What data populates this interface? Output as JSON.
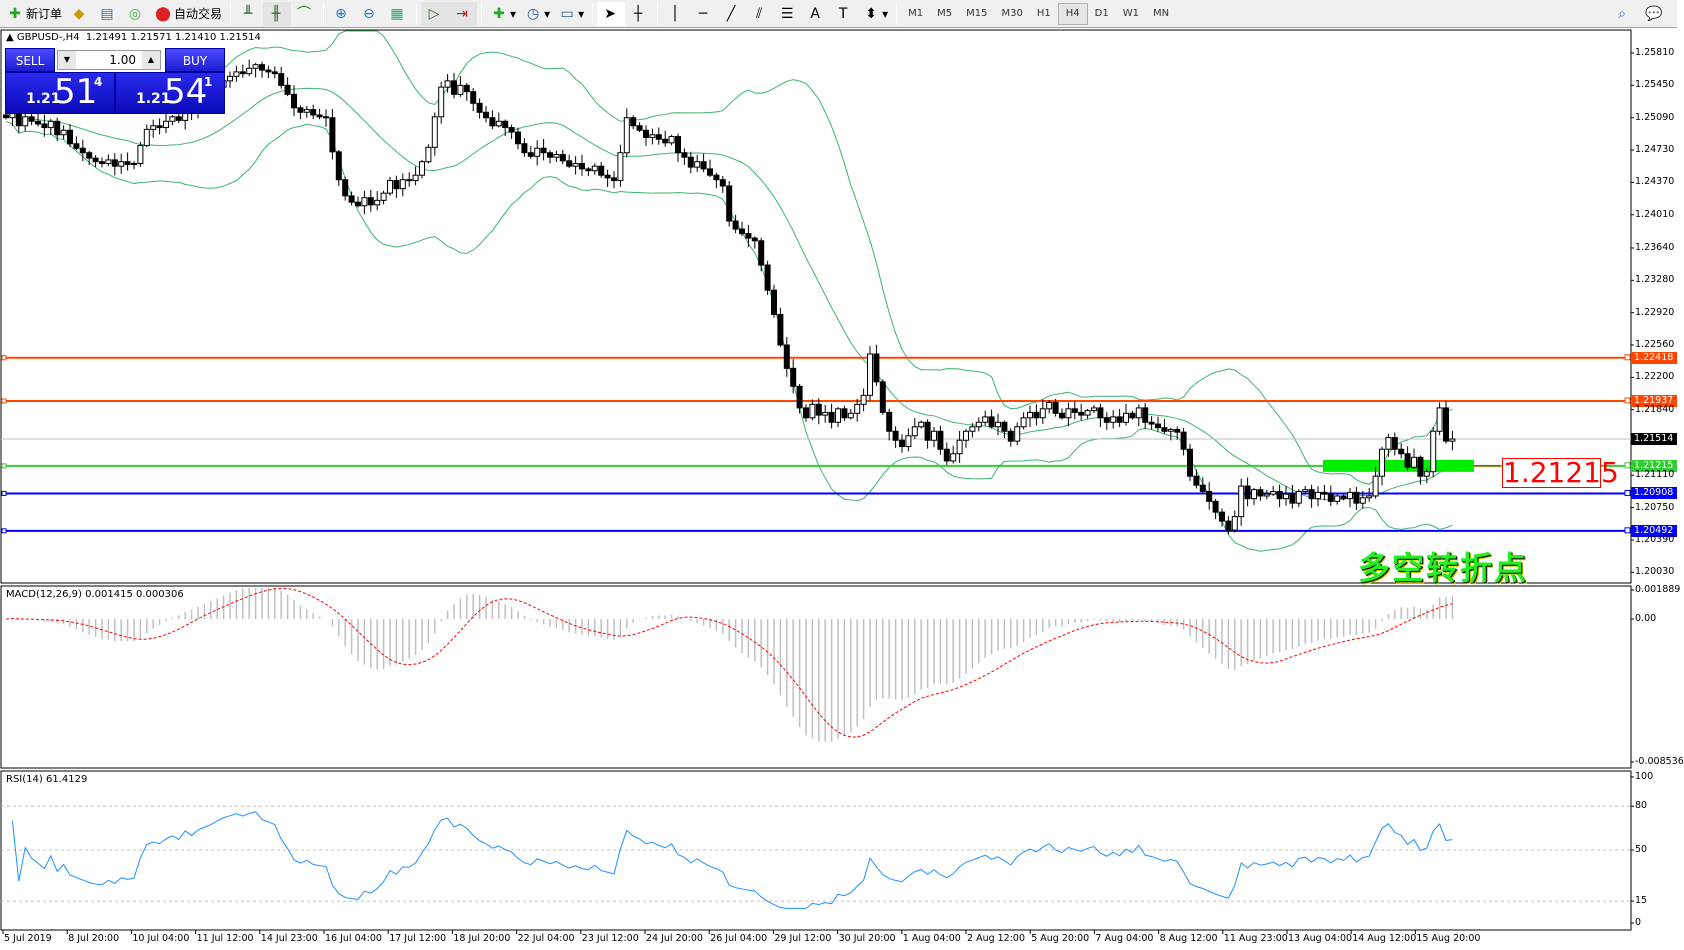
{
  "toolbar": {
    "new_order": "新订单",
    "auto_trading": "自动交易",
    "timeframes": [
      "M1",
      "M5",
      "M15",
      "M30",
      "H1",
      "H4",
      "D1",
      "W1",
      "MN"
    ],
    "active_timeframe": "H4",
    "icons": [
      "bar-chart-icon",
      "candlestick-icon",
      "line-chart-icon",
      "zoom-in-icon",
      "zoom-out-icon",
      "tile-windows-icon",
      "auto-scroll-icon",
      "chart-shift-icon",
      "indicators-icon",
      "periods-icon",
      "templates-icon",
      "cursor-icon",
      "crosshair-icon",
      "vertical-line-icon",
      "horizontal-line-icon",
      "trendline-icon",
      "equidistant-channel-icon",
      "fibonacci-icon",
      "text-icon",
      "text-label-icon",
      "arrows-icon",
      "search-icon",
      "chat-icon"
    ]
  },
  "chart": {
    "header": "GBPUSD-,H4  1.21491 1.21571 1.21410 1.21514",
    "symbol": "GBPUSD-,H4",
    "ohlc": "1.21491 1.21571 1.21410 1.21514"
  },
  "oneclick": {
    "sell_label": "SELL",
    "buy_label": "BUY",
    "lot": "1.00",
    "sell_big": "1.21",
    "sell_main": "51",
    "sell_pip": "4",
    "buy_big": "1.21",
    "buy_main": "54",
    "buy_pip": "1"
  },
  "price_axis": [
    "1.25810",
    "1.25450",
    "1.25090",
    "1.24730",
    "1.24370",
    "1.24010",
    "1.23640",
    "1.23280",
    "1.22920",
    "1.22560",
    "1.22200",
    "1.21840",
    "1.21110",
    "1.20750",
    "1.20390",
    "1.20030"
  ],
  "levels": [
    {
      "price": "1.22418",
      "color": "#ff4500"
    },
    {
      "price": "1.21937",
      "color": "#ff4500"
    },
    {
      "price": "1.21215",
      "color": "#32cd32"
    },
    {
      "price": "1.20908",
      "color": "#0000ff"
    },
    {
      "price": "1.20492",
      "color": "#0000ff"
    }
  ],
  "current_price": {
    "price": "1.21514",
    "color": "#000000"
  },
  "level_label": "1.21215",
  "annotation": "多空转折点",
  "colors": {
    "bollinger": "#3cb371",
    "macd_hist": "#c0c0c0",
    "macd_signal": "#ff0000",
    "rsi": "#1e90ff",
    "zone": "#00ee00"
  },
  "macd": {
    "label": "MACD(12,26,9) 0.001415 0.000306",
    "axis": [
      "0.001889",
      "0.00",
      "-0.008536"
    ]
  },
  "rsi": {
    "label": "RSI(14) 61.4129",
    "axis": [
      "100",
      "80",
      "50",
      "15",
      "0"
    ]
  },
  "time_axis": [
    "5 Jul 2019",
    "8 Jul 20:00",
    "10 Jul 04:00",
    "11 Jul 12:00",
    "14 Jul 23:00",
    "16 Jul 04:00",
    "17 Jul 12:00",
    "18 Jul 20:00",
    "22 Jul 04:00",
    "23 Jul 12:00",
    "24 Jul 20:00",
    "26 Jul 04:00",
    "29 Jul 12:00",
    "30 Jul 20:00",
    "1 Aug 04:00",
    "2 Aug 12:00",
    "5 Aug 20:00",
    "7 Aug 04:00",
    "8 Aug 12:00",
    "11 Aug 23:00",
    "13 Aug 04:00",
    "14 Aug 12:00",
    "15 Aug 20:00"
  ],
  "chart_data": {
    "type": "candlestick",
    "symbol": "GBPUSD",
    "timeframe": "H4",
    "ylim": [
      1.2003,
      1.2599
    ],
    "last_bar": {
      "open": 1.21491,
      "high": 1.21571,
      "low": 1.2141,
      "close": 1.21514
    },
    "closes": [
      1.2509,
      1.2515,
      1.25,
      1.251,
      1.2505,
      1.2502,
      1.2498,
      1.2505,
      1.249,
      1.2495,
      1.248,
      1.2475,
      1.247,
      1.2464,
      1.246,
      1.2458,
      1.2462,
      1.2455,
      1.246,
      1.2457,
      1.2458,
      1.2478,
      1.2496,
      1.25,
      1.2498,
      1.2505,
      1.251,
      1.2506,
      1.252,
      1.2515,
      1.2525,
      1.253,
      1.2535,
      1.2543,
      1.255,
      1.2555,
      1.256,
      1.2558,
      1.2564,
      1.2568,
      1.2562,
      1.256,
      1.2558,
      1.2545,
      1.2535,
      1.252,
      1.2515,
      1.2518,
      1.2512,
      1.251,
      1.2509,
      1.2471,
      1.244,
      1.2422,
      1.2415,
      1.2411,
      1.242,
      1.2412,
      1.2417,
      1.2425,
      1.2439,
      1.243,
      1.244,
      1.2439,
      1.2445,
      1.246,
      1.2476,
      1.251,
      1.2543,
      1.255,
      1.2535,
      1.2545,
      1.2538,
      1.2525,
      1.2515,
      1.2509,
      1.25,
      1.2505,
      1.2498,
      1.2493,
      1.248,
      1.247,
      1.2466,
      1.2475,
      1.247,
      1.2465,
      1.2468,
      1.2461,
      1.2455,
      1.2458,
      1.2452,
      1.245,
      1.2455,
      1.2445,
      1.2442,
      1.2439,
      1.247,
      1.2509,
      1.25,
      1.2495,
      1.2487,
      1.249,
      1.2485,
      1.2481,
      1.2488,
      1.247,
      1.2465,
      1.2454,
      1.246,
      1.2452,
      1.2445,
      1.244,
      1.2433,
      1.2394,
      1.2385,
      1.238,
      1.2375,
      1.2372,
      1.2345,
      1.2317,
      1.229,
      1.2256,
      1.223,
      1.221,
      1.2186,
      1.2175,
      1.219,
      1.2178,
      1.2181,
      1.217,
      1.2185,
      1.2175,
      1.218,
      1.219,
      1.22,
      1.2246,
      1.2215,
      1.2181,
      1.216,
      1.215,
      1.2143,
      1.2155,
      1.2165,
      1.217,
      1.215,
      1.216,
      1.214,
      1.2127,
      1.2135,
      1.215,
      1.216,
      1.2165,
      1.217,
      1.2176,
      1.2165,
      1.217,
      1.216,
      1.2149,
      1.2165,
      1.2175,
      1.2181,
      1.2175,
      1.2185,
      1.2192,
      1.218,
      1.2175,
      1.2185,
      1.2181,
      1.2178,
      1.2183,
      1.2186,
      1.2175,
      1.217,
      1.2176,
      1.217,
      1.218,
      1.2175,
      1.2186,
      1.217,
      1.2168,
      1.2164,
      1.216,
      1.2162,
      1.2159,
      1.214,
      1.211,
      1.21,
      1.2093,
      1.2082,
      1.207,
      1.206,
      1.205,
      1.2065,
      1.2099,
      1.2085,
      1.2095,
      1.2088,
      1.209,
      1.2093,
      1.2085,
      1.209,
      1.208,
      1.2093,
      1.2095,
      1.2085,
      1.2092,
      1.209,
      1.2082,
      1.2088,
      1.2085,
      1.2092,
      1.208,
      1.2086,
      1.2088,
      1.211,
      1.214,
      1.2153,
      1.214,
      1.2135,
      1.212,
      1.2131,
      1.211,
      1.2115,
      1.216,
      1.2186,
      1.2149,
      1.21514
    ],
    "indicators": [
      "Bollinger Bands(20,2)",
      "MACD(12,26,9)",
      "RSI(14)"
    ]
  }
}
